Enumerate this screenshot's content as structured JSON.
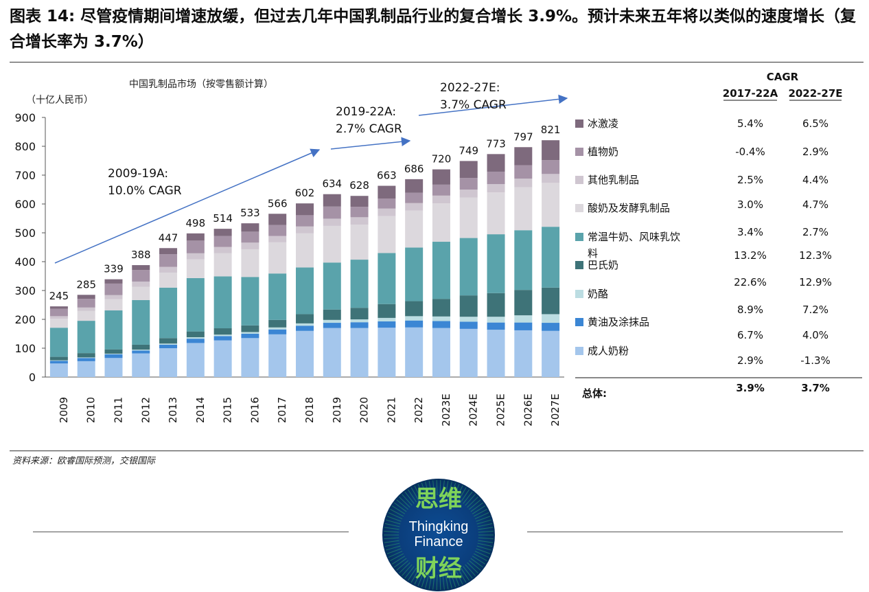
{
  "title": "图表 14: 尽管疫情期间增速放缓，但过去几年中国乳制品行业的复合增长 3.9%。预计未来五年将以类似的速度增长（复合增长率为 3.7%）",
  "source": "资料来源：欧睿国际预测，交银国际",
  "logo": {
    "top": "思维",
    "line1": "Thingking",
    "line2": "Finance",
    "bottom": "财经"
  },
  "colors": {
    "冰激凌": "#7e6a7d",
    "植物奶": "#a592a6",
    "其他乳制品": "#cfc6d0",
    "酸奶及发酵乳制品": "#dcd8dd",
    "常温牛奶、风味乳饮料": "#5aa3ab",
    "巴氏奶": "#3e7378",
    "奶酪": "#bcdde2",
    "黄油及涂抹品": "#3b86d4",
    "成人奶粉": "#a4c6ec",
    "arrow": "#4472c4"
  },
  "chart_data": {
    "type": "bar",
    "stacked": true,
    "title": "中国乳制品市场（按零售额计算）",
    "ylabel": "（十亿人民币）",
    "ylim": [
      0,
      900
    ],
    "yticks": [
      0,
      100,
      200,
      300,
      400,
      500,
      600,
      700,
      800,
      900
    ],
    "categories": [
      "2009",
      "2010",
      "2011",
      "2012",
      "2013",
      "2014",
      "2015",
      "2016",
      "2017",
      "2018",
      "2019",
      "2020",
      "2021",
      "2022",
      "2023E",
      "2024E",
      "2025E",
      "2026E",
      "2027E"
    ],
    "totals": [
      245,
      285,
      339,
      388,
      447,
      498,
      514,
      533,
      566,
      602,
      634,
      628,
      663,
      686,
      720,
      749,
      773,
      797,
      821
    ],
    "series": [
      {
        "name": "成人奶粉",
        "values": [
          47,
          55,
          66,
          82,
          100,
          118,
          127,
          135,
          148,
          160,
          170,
          170,
          171,
          172,
          170,
          167,
          164,
          162,
          160
        ]
      },
      {
        "name": "黄油及涂抹品",
        "values": [
          9,
          11,
          13,
          10,
          12,
          15,
          15,
          15,
          17,
          18,
          18,
          20,
          22,
          24,
          24,
          25,
          25,
          27,
          28
        ]
      },
      {
        "name": "奶酪",
        "values": [
          2,
          2,
          2,
          3,
          4,
          5,
          5,
          6,
          7,
          8,
          10,
          10,
          12,
          15,
          16,
          17,
          20,
          25,
          30
        ]
      },
      {
        "name": "巴氏奶",
        "values": [
          12,
          15,
          15,
          17,
          19,
          20,
          22,
          23,
          26,
          32,
          36,
          40,
          48,
          52,
          61,
          74,
          82,
          88,
          92
        ]
      },
      {
        "name": "常温牛奶、风味乳饮料",
        "values": [
          101,
          112,
          135,
          155,
          175,
          185,
          180,
          168,
          161,
          162,
          163,
          167,
          177,
          186,
          198,
          199,
          204,
          207,
          211
        ]
      },
      {
        "name": "酸奶及发酵乳制品",
        "values": [
          31,
          34,
          39,
          46,
          52,
          65,
          80,
          96,
          108,
          118,
          127,
          121,
          128,
          128,
          133,
          140,
          145,
          149,
          152
        ]
      },
      {
        "name": "其他乳制品",
        "values": [
          9,
          12,
          14,
          18,
          20,
          21,
          22,
          23,
          22,
          24,
          25,
          26,
          26,
          26,
          27,
          28,
          29,
          30,
          31
        ]
      },
      {
        "name": "植物奶",
        "values": [
          26,
          30,
          40,
          40,
          44,
          44,
          38,
          38,
          38,
          39,
          42,
          36,
          35,
          36,
          38,
          40,
          43,
          46,
          48
        ]
      },
      {
        "name": "冰激凌",
        "values": [
          8,
          14,
          15,
          17,
          21,
          25,
          25,
          29,
          39,
          41,
          43,
          38,
          44,
          47,
          53,
          59,
          61,
          63,
          69
        ]
      }
    ],
    "annotations": [
      {
        "line1": "2009-19A:",
        "line2": "10.0% CAGR"
      },
      {
        "line1": "2019-22A:",
        "line2": "2.7% CAGR"
      },
      {
        "line1": "2022-27E:",
        "line2": "3.7% CAGR"
      }
    ],
    "cagr_table": {
      "header": "CAGR",
      "columns": [
        "2017-22A",
        "2022-27E"
      ],
      "rows": [
        {
          "label": "冰激凌",
          "a": "5.4%",
          "b": "6.5%"
        },
        {
          "label": "植物奶",
          "a": "-0.4%",
          "b": "2.9%"
        },
        {
          "label": "其他乳制品",
          "a": "2.5%",
          "b": "4.4%"
        },
        {
          "label": "酸奶及发酵乳制品",
          "a": "3.0%",
          "b": "4.7%"
        },
        {
          "label": "常温牛奶、风味乳饮料",
          "a": "3.4%",
          "b": "2.7%"
        },
        {
          "label": "巴氏奶",
          "a": "13.2%",
          "b": "12.3%"
        },
        {
          "label": "奶酪",
          "a": "22.6%",
          "b": "12.9%"
        },
        {
          "label": "黄油及涂抹品",
          "a": "8.9%",
          "b": "7.2%"
        },
        {
          "label": "成人奶粉",
          "a": "6.7%",
          "b": "4.0%"
        }
      ],
      "extra_row": {
        "a": "2.9%",
        "b": "-1.3%"
      },
      "total": {
        "label": "总体:",
        "a": "3.9%",
        "b": "3.7%"
      }
    }
  }
}
